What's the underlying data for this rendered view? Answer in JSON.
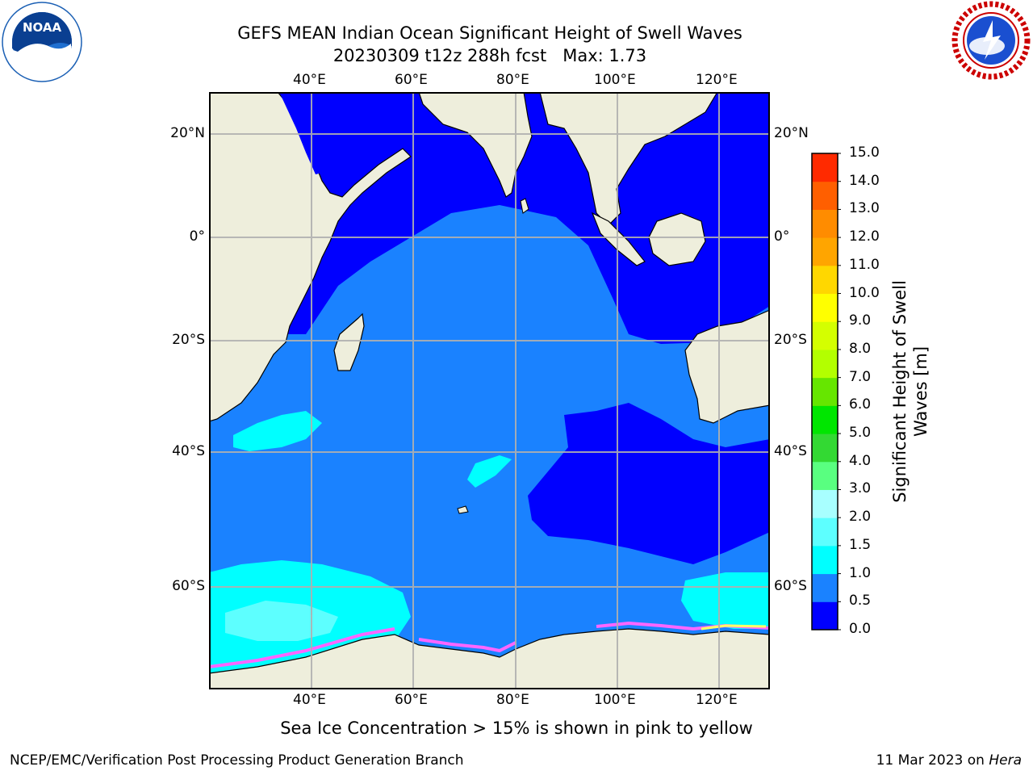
{
  "title": {
    "line1": "GEFS MEAN Indian Ocean Significant Height of Swell Waves",
    "line2": "20230309 t12z 288h fcst   Max: 1.73"
  },
  "logos": {
    "left": {
      "icon": "noaa-logo-icon",
      "text": "NOAA"
    },
    "right": {
      "icon": "national-weather-service-logo-icon"
    }
  },
  "map": {
    "lon_top_labels": [
      "40°E",
      "60°E",
      "80°E",
      "100°E",
      "120°E"
    ],
    "lon_bottom_labels": [
      "40°E",
      "60°E",
      "80°E",
      "100°E",
      "120°E"
    ],
    "lat_left_labels": [
      "20°N",
      "0°",
      "20°S",
      "40°S",
      "60°S"
    ],
    "lat_right_labels": [
      "20°N",
      "0°",
      "20°S",
      "40°S",
      "60°S"
    ],
    "colors": {
      "land": "#eeeedc",
      "ocean_0_0_5": "#0000ff",
      "ocean_0_5_1": "#1a82ff",
      "ocean_1_1_5": "#00ffff",
      "ocean_1_5_2": "#5dffff",
      "ice_pink": "#ff66ff",
      "ice_yellow": "#ffff66"
    }
  },
  "colorbar": {
    "label_line1": "Significant Height of Swell",
    "label_line2": "Waves [m]",
    "ticks": [
      "0.0",
      "0.5",
      "1.0",
      "1.5",
      "2.0",
      "3.0",
      "4.0",
      "5.0",
      "6.0",
      "7.0",
      "8.0",
      "9.0",
      "10.0",
      "11.0",
      "12.0",
      "13.0",
      "14.0",
      "15.0"
    ],
    "colors": [
      "#0000ff",
      "#1a82ff",
      "#00ffff",
      "#5dffff",
      "#a8ffff",
      "#59ff80",
      "#33d933",
      "#00e600",
      "#66e600",
      "#b3ff00",
      "#d4ff00",
      "#ffff00",
      "#ffd700",
      "#ffa500",
      "#ff8c00",
      "#ff5f00",
      "#ff2a00"
    ]
  },
  "caption": "Sea Ice Concentration > 15% is shown in pink to yellow",
  "footer": {
    "left": "NCEP/EMC/Verification Post Processing Product Generation Branch",
    "right_prefix": "11 Mar 2023 on ",
    "right_host": "Hera"
  }
}
